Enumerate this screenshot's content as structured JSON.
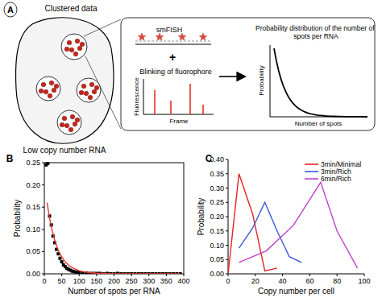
{
  "diagram": {
    "panel_label": "A",
    "cell_title": "Clustered data",
    "cell_caption": "Low copy number RNA",
    "method": "smFISH",
    "plus": "+",
    "blinking_title": "Blinking of fluorophore",
    "blinking_ylabel": "Fluorescence",
    "blinking_xlabel": "Frame",
    "result_title": "Probability distribution of the number of spots per RNA",
    "result_ylabel": "Probability",
    "result_xlabel": "Number of spots"
  },
  "chart_data": [
    {
      "type": "scatter",
      "title": "B",
      "x_label": "Number of spots per RNA",
      "y_label": "Probability",
      "xlim": [
        0,
        400
      ],
      "xticks": [
        0,
        50,
        100,
        150,
        200,
        250,
        300,
        350,
        400
      ],
      "ylim": [
        0,
        0.25
      ],
      "yticks": [
        {
          "value": 0,
          "label": "0.00"
        },
        {
          "value": 0.05,
          "label": "0.05"
        },
        {
          "value": 0.1,
          "label": "0.10"
        },
        {
          "value": 0.15,
          "label": "0.15"
        },
        {
          "value": 0.2,
          "label": "0.20"
        },
        {
          "value": 0.25,
          "label": "0.25"
        }
      ],
      "grid": false,
      "series": [
        {
          "type": "scatter",
          "color": "#000000",
          "marker": "square",
          "x": [
            5,
            10,
            15,
            20,
            25,
            30,
            35,
            40,
            45,
            50,
            55,
            60,
            65,
            70,
            75,
            80,
            85,
            90,
            95,
            100,
            110,
            120,
            130,
            140,
            150,
            160,
            170,
            180,
            190,
            200,
            210,
            220,
            230,
            240,
            250,
            260,
            270,
            280,
            290,
            300,
            310,
            320,
            330,
            340,
            350,
            360,
            370,
            380,
            390
          ],
          "values": [
            0.245,
            0.248,
            0.13,
            0.11,
            0.085,
            0.07,
            0.055,
            0.045,
            0.035,
            0.027,
            0.02,
            0.016,
            0.012,
            0.01,
            0.008,
            0.006,
            0.005,
            0.004,
            0.003,
            0.003,
            0.002,
            0.002,
            0.001,
            0.001,
            0.001,
            0.001,
            0,
            0.001,
            0,
            0,
            0.001,
            0,
            0,
            0,
            0,
            0,
            0,
            0,
            0,
            0,
            0,
            0,
            0,
            0,
            0,
            0,
            0,
            0,
            0
          ]
        },
        {
          "type": "line",
          "color": "#e23b2e",
          "line_style": "solid",
          "x": [
            8,
            15,
            20,
            30,
            40,
            50,
            60,
            70,
            80,
            100,
            120,
            150,
            200,
            250,
            300,
            350,
            390
          ],
          "values": [
            0.16,
            0.125,
            0.105,
            0.075,
            0.053,
            0.038,
            0.027,
            0.019,
            0.014,
            0.007,
            0.0035,
            0.0013,
            0.0002,
            0,
            0,
            0,
            0
          ]
        }
      ]
    },
    {
      "type": "line",
      "title": "C",
      "x_label": "Copy number per cell",
      "y_label": "Probability",
      "xlim": [
        0,
        100
      ],
      "xticks": [
        0,
        20,
        40,
        60,
        80,
        100
      ],
      "ylim": [
        0,
        0.4
      ],
      "yticks": [
        {
          "value": 0,
          "label": "0.00"
        },
        {
          "value": 0.05,
          "label": "0.05"
        },
        {
          "value": 0.1,
          "label": "0.10"
        },
        {
          "value": 0.15,
          "label": "0.15"
        },
        {
          "value": 0.2,
          "label": "0.20"
        },
        {
          "value": 0.25,
          "label": "0.25"
        },
        {
          "value": 0.3,
          "label": "0.30"
        },
        {
          "value": 0.35,
          "label": "0.35"
        },
        {
          "value": 0.4,
          "label": "0.40"
        }
      ],
      "grid": false,
      "legend": "upper right",
      "series": [
        {
          "name": "3min/Minimal",
          "color": "#e8211f",
          "line_style": "solid",
          "x": [
            0,
            8,
            18,
            27,
            36
          ],
          "values": [
            0,
            0.35,
            0.21,
            0.01,
            0.02
          ]
        },
        {
          "name": "3min/Rich",
          "color": "#3a57d6",
          "line_style": "solid",
          "x": [
            8,
            18,
            27,
            36,
            45,
            54
          ],
          "values": [
            0.09,
            0.16,
            0.25,
            0.15,
            0.06,
            0.04
          ]
        },
        {
          "name": "6min/Rich",
          "color": "#c040c8",
          "line_style": "solid",
          "x": [
            8,
            28,
            48,
            68,
            80,
            95
          ],
          "values": [
            0.04,
            0.08,
            0.17,
            0.32,
            0.15,
            0.02
          ]
        }
      ]
    }
  ]
}
